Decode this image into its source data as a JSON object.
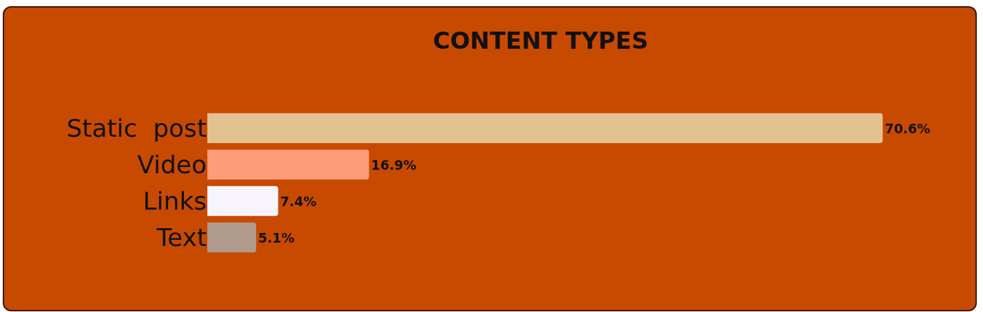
{
  "chart_data": {
    "type": "bar",
    "orientation": "horizontal",
    "title": "CONTENT TYPES",
    "categories": [
      "Static  post",
      "Video",
      "Links",
      "Text"
    ],
    "values": [
      70.6,
      16.9,
      7.4,
      5.1
    ],
    "value_labels": [
      "70.6%",
      "16.9%",
      "7.4%",
      "5.1%"
    ],
    "colors": [
      "#e2c291",
      "#fd9c78",
      "#f8f4fe",
      "#b09a8c"
    ],
    "tick_labels": "y"
  }
}
